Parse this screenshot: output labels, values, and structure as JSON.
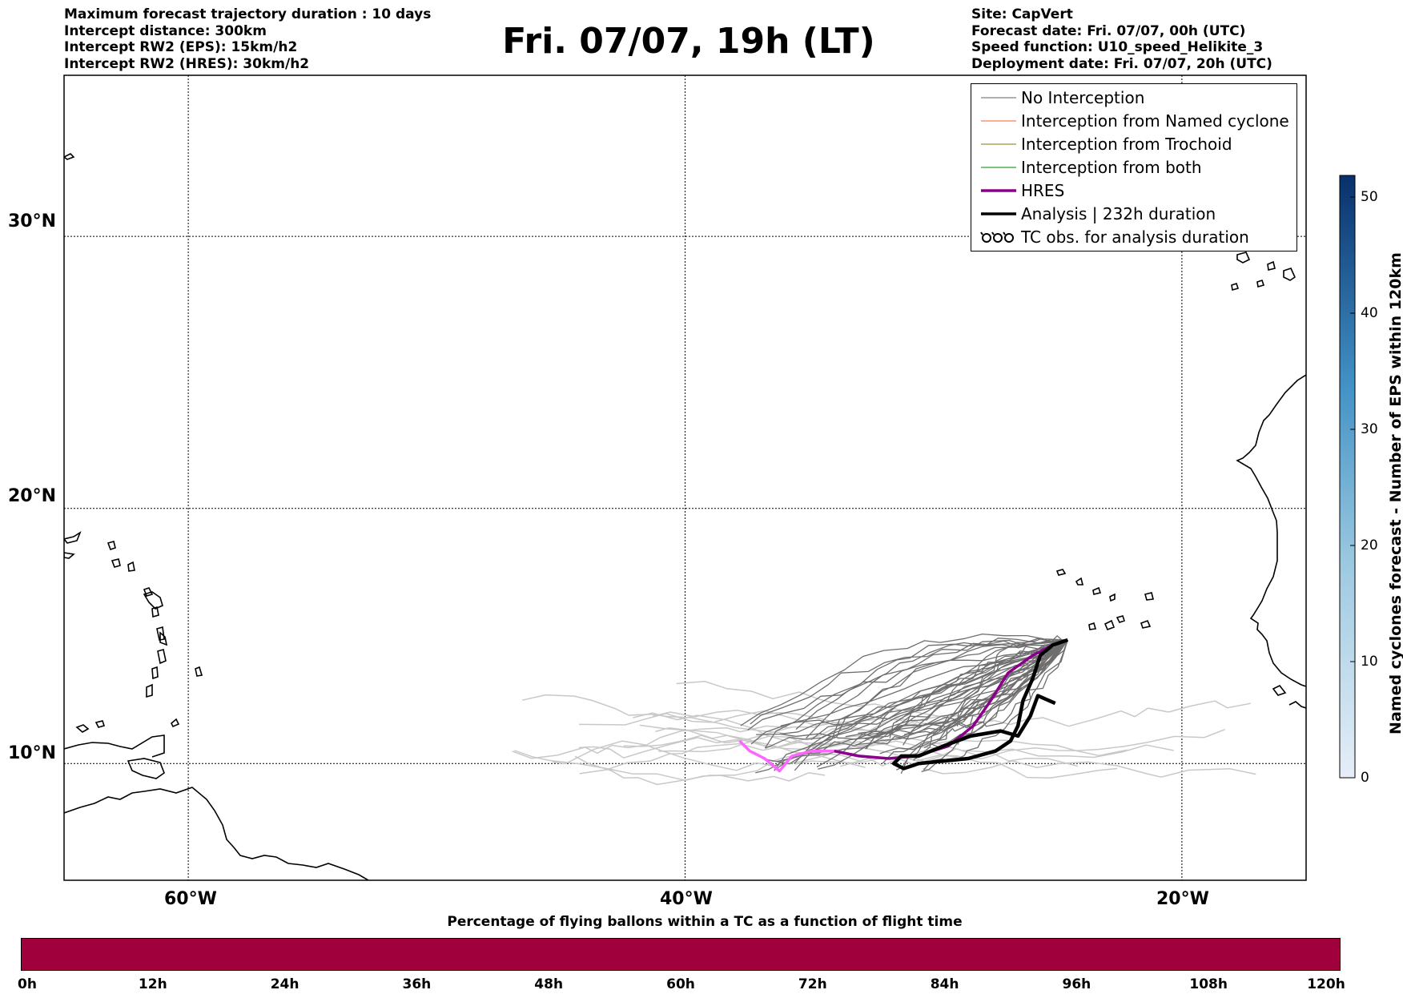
{
  "header_left": [
    "Maximum forecast trajectory duration : 10 days",
    "Intercept distance: 300km",
    "Intercept RW2 (EPS):  15km/h2",
    "Intercept RW2 (HRES): 30km/h2"
  ],
  "title": "Fri. 07/07, 19h (LT)",
  "header_right": [
    "Site: CapVert",
    "Forecast date: Fri. 07/07, 00h (UTC)",
    "Speed function: U10_speed_Helikite_3",
    "Deployment date: Fri. 07/07, 20h (UTC)"
  ],
  "map": {
    "lat_labels": [
      "30°N",
      "20°N",
      "10°N"
    ],
    "lon_labels": [
      "60°W",
      "40°W",
      "20°W"
    ],
    "grid_lats": [
      30,
      20,
      10
    ],
    "grid_lons": [
      -60,
      -40,
      -20
    ],
    "lon_range": [
      -65,
      -15
    ],
    "lat_range": [
      5.3,
      35.5
    ]
  },
  "legend": [
    {
      "label": "No Interception",
      "color": "#808080",
      "style": "thin"
    },
    {
      "label": "Interception from Named cyclone",
      "color": "#ff7f50",
      "style": "thin"
    },
    {
      "label": "Interception from Trochoid",
      "color": "#9a8f3a",
      "style": "thin"
    },
    {
      "label": "Interception from both",
      "color": "#2ca02c",
      "style": "thin"
    },
    {
      "label": "HRES",
      "color": "#8b008b",
      "style": "thick"
    },
    {
      "label": "Analysis | 232h duration",
      "color": "#000000",
      "style": "thick"
    },
    {
      "label": "TC obs. for analysis duration",
      "color": "#000000",
      "style": "symbol"
    }
  ],
  "colorbar_right": {
    "title": "Named cyclones forecast - Number of EPS within 120km",
    "ticks": [
      "0",
      "10",
      "20",
      "30",
      "40",
      "50"
    ],
    "color_low": "#e6eef8",
    "color_high": "#08306b"
  },
  "colorbar_bottom": {
    "title": "Percentage of flying ballons within a TC as a function of flight time",
    "ticks": [
      "0h",
      "12h",
      "24h",
      "36h",
      "48h",
      "60h",
      "72h",
      "84h",
      "96h",
      "108h",
      "120h"
    ],
    "color": "#a0003c"
  },
  "trajectories": {
    "hres": [
      [
        -37.8,
        10.9
      ],
      [
        -37.4,
        10.5
      ],
      [
        -36.8,
        10.2
      ],
      [
        -36.2,
        9.7
      ],
      [
        -35.7,
        10.3
      ],
      [
        -34.9,
        10.5
      ],
      [
        -34.0,
        10.5
      ],
      [
        -33.0,
        10.3
      ],
      [
        -31.8,
        10.2
      ],
      [
        -30.7,
        10.3
      ],
      [
        -29.4,
        10.7
      ],
      [
        -28.4,
        11.5
      ],
      [
        -27.7,
        12.5
      ],
      [
        -27.0,
        13.6
      ],
      [
        -26.0,
        14.3
      ],
      [
        -25.2,
        14.7
      ],
      [
        -24.6,
        14.9
      ]
    ],
    "analysis": [
      [
        -24.6,
        14.9
      ],
      [
        -25.2,
        14.7
      ],
      [
        -25.7,
        14.3
      ],
      [
        -26.0,
        13.4
      ],
      [
        -26.4,
        12.5
      ],
      [
        -26.6,
        11.5
      ],
      [
        -26.9,
        10.9
      ],
      [
        -27.5,
        10.5
      ],
      [
        -28.6,
        10.2
      ],
      [
        -29.6,
        10.1
      ],
      [
        -30.6,
        10.0
      ],
      [
        -31.2,
        9.8
      ],
      [
        -31.6,
        10.0
      ],
      [
        -31.3,
        10.3
      ],
      [
        -30.6,
        10.3
      ],
      [
        -29.6,
        10.7
      ],
      [
        -28.5,
        11.1
      ],
      [
        -27.3,
        11.3
      ],
      [
        -26.6,
        11.1
      ],
      [
        -26.1,
        11.9
      ],
      [
        -25.8,
        12.7
      ],
      [
        -25.1,
        12.4
      ]
    ]
  }
}
